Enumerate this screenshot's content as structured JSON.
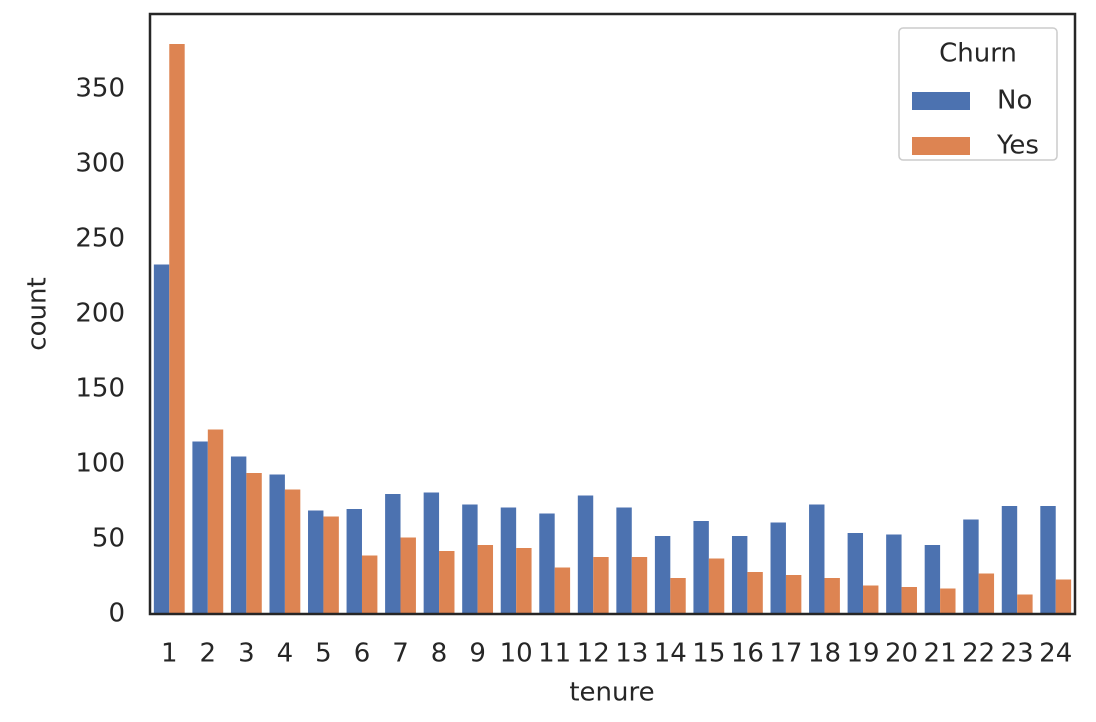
{
  "chart_data": {
    "type": "bar",
    "xlabel": "tenure",
    "ylabel": "count",
    "categories": [
      "1",
      "2",
      "3",
      "4",
      "5",
      "6",
      "7",
      "8",
      "9",
      "10",
      "11",
      "12",
      "13",
      "14",
      "15",
      "16",
      "17",
      "18",
      "19",
      "20",
      "21",
      "22",
      "23",
      "24"
    ],
    "series": [
      {
        "name": "No",
        "color": "#4c72b0",
        "values": [
          233,
          115,
          105,
          93,
          69,
          70,
          80,
          81,
          73,
          71,
          67,
          79,
          71,
          52,
          62,
          52,
          61,
          73,
          54,
          53,
          46,
          63,
          72,
          72
        ]
      },
      {
        "name": "Yes",
        "color": "#dd8452",
        "values": [
          380,
          123,
          94,
          83,
          65,
          39,
          51,
          42,
          46,
          44,
          31,
          38,
          38,
          24,
          37,
          28,
          26,
          24,
          19,
          18,
          17,
          27,
          13,
          23
        ]
      }
    ],
    "legend_title": "Churn",
    "legend": "upper right",
    "ylim": [
      0,
      400
    ],
    "yticks": [
      0,
      50,
      100,
      150,
      200,
      250,
      300,
      350
    ],
    "grid": false
  }
}
